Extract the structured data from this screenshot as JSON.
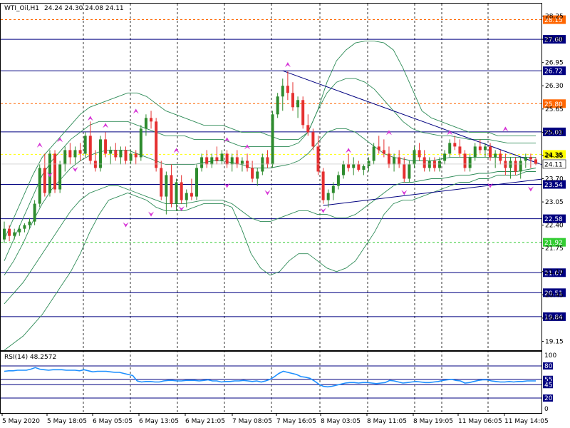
{
  "header": {
    "symbol": "WTI_Oil,H1",
    "ohlc": "24.24 24.30 24.08 24.11"
  },
  "rsi": {
    "label": "RSI(14) 48.2572",
    "scale_labels": [
      "100",
      "80",
      "55",
      "45",
      "20",
      "0"
    ],
    "levels": [
      80,
      55,
      45,
      20
    ],
    "color": "#1e90ff",
    "values": [
      70,
      71,
      71,
      72,
      72,
      72,
      74,
      77,
      74,
      73,
      72,
      73,
      73,
      73,
      72,
      72,
      72,
      71,
      73,
      71,
      69,
      70,
      70,
      70,
      69,
      68,
      68,
      66,
      64,
      62,
      52,
      50,
      51,
      51,
      50,
      50,
      52,
      53,
      53,
      52,
      52,
      53,
      53,
      53,
      52,
      53,
      54,
      52,
      52,
      50,
      51,
      51,
      52,
      52,
      53,
      52,
      51,
      52,
      50,
      52,
      55,
      60,
      66,
      70,
      68,
      66,
      64,
      60,
      59,
      57,
      52,
      46,
      42,
      41,
      42,
      44,
      46,
      48,
      49,
      49,
      48,
      49,
      49,
      48,
      47,
      48,
      49,
      53,
      52,
      50,
      48,
      49,
      50,
      51,
      50,
      49,
      49,
      50,
      51,
      53,
      54,
      55,
      53,
      52,
      48,
      49,
      51,
      53,
      54,
      54,
      52,
      51,
      50,
      50,
      51,
      50,
      51,
      51,
      52,
      52,
      52
    ]
  },
  "chart_data": {
    "type": "candlestick",
    "symbol": "WTI_Oil",
    "timeframe": "H1",
    "ylim": [
      18.9,
      28.6
    ],
    "price_ticks": [
      "28.25",
      "27.60",
      "26.95",
      "26.30",
      "25.65",
      "25.00",
      "24.35",
      "23.70",
      "23.05",
      "22.40",
      "21.75",
      "21.10",
      "20.45",
      "19.80",
      "19.15"
    ],
    "x_labels": [
      "5 May 2020",
      "5 May 18:05",
      "6 May 05:05",
      "6 May 13:05",
      "6 May 21:05",
      "7 May 08:05",
      "7 May 16:05",
      "8 May 03:05",
      "8 May 11:05",
      "8 May 19:05",
      "11 May 06:05",
      "11 May 14:05"
    ],
    "horizontal_levels": [
      {
        "value": 27.6,
        "label": "27.60",
        "style": "solid",
        "color": "#000080"
      },
      {
        "value": 26.72,
        "label": "26.72",
        "style": "solid",
        "color": "#000080"
      },
      {
        "value": 25.01,
        "label": "25.01",
        "style": "solid",
        "color": "#000080"
      },
      {
        "value": 23.54,
        "label": "23.54",
        "style": "solid",
        "color": "#000080"
      },
      {
        "value": 22.58,
        "label": "22.58",
        "style": "solid",
        "color": "#000080"
      },
      {
        "value": 21.07,
        "label": "21.07",
        "style": "solid",
        "color": "#000080"
      },
      {
        "value": 20.51,
        "label": "20.51",
        "style": "solid",
        "color": "#000080"
      },
      {
        "value": 19.84,
        "label": "19.84",
        "style": "solid",
        "color": "#000080"
      },
      {
        "value": 28.15,
        "label": "28.15",
        "style": "dashed",
        "color": "#ff6600"
      },
      {
        "value": 25.8,
        "label": "25.80",
        "style": "dashed",
        "color": "#ff6600"
      },
      {
        "value": 21.92,
        "label": "21.92",
        "style": "dashed",
        "color": "#33cc33"
      },
      {
        "value": 24.38,
        "label": "24.38",
        "style": "dashed",
        "color": "#ffff00"
      }
    ],
    "current_price": {
      "value": 24.11,
      "label": "24.11"
    },
    "candles": [
      [
        22.0,
        22.5,
        21.9,
        22.3
      ],
      [
        22.3,
        22.4,
        21.95,
        22.1
      ],
      [
        22.1,
        22.3,
        22.0,
        22.2
      ],
      [
        22.2,
        22.4,
        22.1,
        22.3
      ],
      [
        22.3,
        22.45,
        22.2,
        22.4
      ],
      [
        22.4,
        22.6,
        22.3,
        22.5
      ],
      [
        22.5,
        23.1,
        22.4,
        23.0
      ],
      [
        23.0,
        24.1,
        22.9,
        24.0
      ],
      [
        24.0,
        24.4,
        23.2,
        23.3
      ],
      [
        23.3,
        24.5,
        23.2,
        24.4
      ],
      [
        24.4,
        24.5,
        23.3,
        23.4
      ],
      [
        23.4,
        24.2,
        23.3,
        24.1
      ],
      [
        24.1,
        24.6,
        23.9,
        24.5
      ],
      [
        24.5,
        24.7,
        24.1,
        24.3
      ],
      [
        24.3,
        24.6,
        24.1,
        24.5
      ],
      [
        24.5,
        24.7,
        24.2,
        24.4
      ],
      [
        24.4,
        25.0,
        24.3,
        24.9
      ],
      [
        24.9,
        25.3,
        24.1,
        24.2
      ],
      [
        24.2,
        24.5,
        23.9,
        24.0
      ],
      [
        24.0,
        24.9,
        23.9,
        24.8
      ],
      [
        24.8,
        25.0,
        24.3,
        24.4
      ],
      [
        24.4,
        24.6,
        24.1,
        24.5
      ],
      [
        24.5,
        24.7,
        24.2,
        24.3
      ],
      [
        24.3,
        24.6,
        24.1,
        24.5
      ],
      [
        24.5,
        24.6,
        24.1,
        24.2
      ],
      [
        24.2,
        24.5,
        24.1,
        24.4
      ],
      [
        24.4,
        24.5,
        24.1,
        24.3
      ],
      [
        24.3,
        25.2,
        24.2,
        25.1
      ],
      [
        25.1,
        25.5,
        24.9,
        25.4
      ],
      [
        25.4,
        25.6,
        25.1,
        25.3
      ],
      [
        25.3,
        25.4,
        23.9,
        24.0
      ],
      [
        24.0,
        24.2,
        23.1,
        23.2
      ],
      [
        23.2,
        23.9,
        22.7,
        23.8
      ],
      [
        23.8,
        24.1,
        22.9,
        23.0
      ],
      [
        23.0,
        23.7,
        22.8,
        23.6
      ],
      [
        23.6,
        23.8,
        23.0,
        23.1
      ],
      [
        23.1,
        23.4,
        22.9,
        23.3
      ],
      [
        23.3,
        23.7,
        23.1,
        23.2
      ],
      [
        23.2,
        24.1,
        23.1,
        24.0
      ],
      [
        24.0,
        24.4,
        23.9,
        24.3
      ],
      [
        24.3,
        24.5,
        24.0,
        24.1
      ],
      [
        24.1,
        24.4,
        24.0,
        24.3
      ],
      [
        24.3,
        24.6,
        24.1,
        24.2
      ],
      [
        24.2,
        24.5,
        24.1,
        24.4
      ],
      [
        24.4,
        24.5,
        24.0,
        24.1
      ],
      [
        24.1,
        24.4,
        23.9,
        24.3
      ],
      [
        24.3,
        24.5,
        24.0,
        24.1
      ],
      [
        24.1,
        24.3,
        23.9,
        24.2
      ],
      [
        24.2,
        24.4,
        23.9,
        24.0
      ],
      [
        24.0,
        24.2,
        23.6,
        23.7
      ],
      [
        23.7,
        24.0,
        23.5,
        23.9
      ],
      [
        23.9,
        24.4,
        23.8,
        24.3
      ],
      [
        24.3,
        24.5,
        24.0,
        24.1
      ],
      [
        24.1,
        25.6,
        24.0,
        25.5
      ],
      [
        25.5,
        26.1,
        25.4,
        26.0
      ],
      [
        26.0,
        26.5,
        25.6,
        26.3
      ],
      [
        26.3,
        26.7,
        25.9,
        26.1
      ],
      [
        26.1,
        26.4,
        25.6,
        25.7
      ],
      [
        25.7,
        26.0,
        25.4,
        25.9
      ],
      [
        25.9,
        26.0,
        25.1,
        25.2
      ],
      [
        25.2,
        25.5,
        24.9,
        25.0
      ],
      [
        25.0,
        25.1,
        24.5,
        24.6
      ],
      [
        24.6,
        24.9,
        23.8,
        23.9
      ],
      [
        23.9,
        24.0,
        23.0,
        23.1
      ],
      [
        23.1,
        23.4,
        22.9,
        23.3
      ],
      [
        23.3,
        23.6,
        23.1,
        23.5
      ],
      [
        23.5,
        23.9,
        23.4,
        23.8
      ],
      [
        23.8,
        24.2,
        23.7,
        24.1
      ],
      [
        24.1,
        24.4,
        23.9,
        24.0
      ],
      [
        24.0,
        24.3,
        23.8,
        24.1
      ],
      [
        24.1,
        24.2,
        23.9,
        23.95
      ],
      [
        23.95,
        24.1,
        23.8,
        24.05
      ],
      [
        24.05,
        24.3,
        23.9,
        24.2
      ],
      [
        24.2,
        24.7,
        24.1,
        24.6
      ],
      [
        24.6,
        24.9,
        24.4,
        24.5
      ],
      [
        24.5,
        24.8,
        24.3,
        24.4
      ],
      [
        24.4,
        24.6,
        24.0,
        24.1
      ],
      [
        24.1,
        24.4,
        23.9,
        24.3
      ],
      [
        24.3,
        24.5,
        24.0,
        24.1
      ],
      [
        24.1,
        24.3,
        23.6,
        23.7
      ],
      [
        23.7,
        24.2,
        23.6,
        24.1
      ],
      [
        24.1,
        24.6,
        24.0,
        24.5
      ],
      [
        24.5,
        24.7,
        24.2,
        24.3
      ],
      [
        24.3,
        24.5,
        23.9,
        24.0
      ],
      [
        24.0,
        24.3,
        23.9,
        24.2
      ],
      [
        24.2,
        24.3,
        23.9,
        24.0
      ],
      [
        24.0,
        24.3,
        23.9,
        24.2
      ],
      [
        24.2,
        24.5,
        24.1,
        24.4
      ],
      [
        24.4,
        24.8,
        24.3,
        24.7
      ],
      [
        24.7,
        24.9,
        24.5,
        24.6
      ],
      [
        24.6,
        24.8,
        24.3,
        24.4
      ],
      [
        24.4,
        24.5,
        23.9,
        24.0
      ],
      [
        24.0,
        24.4,
        23.9,
        24.3
      ],
      [
        24.3,
        24.7,
        24.2,
        24.6
      ],
      [
        24.6,
        24.8,
        24.4,
        24.5
      ],
      [
        24.5,
        24.7,
        24.3,
        24.6
      ],
      [
        24.6,
        24.7,
        24.2,
        24.3
      ],
      [
        24.3,
        24.5,
        24.0,
        24.4
      ],
      [
        24.4,
        24.5,
        24.1,
        24.2
      ],
      [
        24.2,
        24.4,
        23.8,
        24.0
      ],
      [
        24.0,
        24.3,
        23.7,
        24.2
      ],
      [
        24.2,
        24.3,
        23.8,
        23.9
      ],
      [
        23.9,
        24.3,
        23.7,
        24.2
      ],
      [
        24.2,
        24.4,
        24.0,
        24.3
      ],
      [
        24.3,
        24.4,
        24.0,
        24.24
      ],
      [
        24.24,
        24.3,
        24.08,
        24.11
      ]
    ],
    "bollinger_outer": {
      "color": "#2e8b57",
      "upper": [
        22.0,
        22.6,
        23.2,
        23.8,
        24.3,
        24.6,
        24.9,
        25.2,
        25.5,
        25.7,
        25.8,
        25.9,
        26.0,
        26.1,
        26.1,
        26.0,
        25.8,
        25.6,
        25.5,
        25.4,
        25.3,
        25.2,
        25.2,
        25.2,
        25.1,
        25.0,
        25.0,
        25.0,
        24.9,
        24.8,
        24.8,
        24.8,
        25.0,
        25.6,
        26.4,
        27.0,
        27.3,
        27.5,
        27.55,
        27.55,
        27.5,
        27.3,
        26.8,
        26.2,
        25.6,
        25.4,
        25.3,
        25.2,
        25.1,
        25.0,
        25.0,
        25.0,
        24.9,
        24.9,
        24.9,
        24.9,
        24.9
      ],
      "lower": [
        18.9,
        19.1,
        19.3,
        19.6,
        19.9,
        20.3,
        20.7,
        21.1,
        21.6,
        22.2,
        22.7,
        23.1,
        23.2,
        23.3,
        23.2,
        23.1,
        22.9,
        22.8,
        22.8,
        22.8,
        22.9,
        23.0,
        23.0,
        23.0,
        22.9,
        22.3,
        21.6,
        21.2,
        21.0,
        21.1,
        21.4,
        21.6,
        21.6,
        21.4,
        21.2,
        21.1,
        21.2,
        21.4,
        21.8,
        22.2,
        22.7,
        23.0,
        23.1,
        23.1,
        23.2,
        23.3,
        23.4,
        23.5,
        23.6,
        23.6,
        23.7,
        23.7,
        23.8,
        23.8,
        23.8,
        23.9,
        23.9
      ]
    },
    "bollinger_inner": {
      "color": "#2e8b57",
      "upper": [
        21.4,
        22.0,
        22.6,
        23.2,
        23.8,
        24.2,
        24.5,
        24.8,
        25.0,
        25.2,
        25.3,
        25.3,
        25.3,
        25.3,
        25.2,
        25.1,
        25.0,
        24.9,
        24.9,
        24.9,
        24.8,
        24.8,
        24.8,
        24.8,
        24.7,
        24.6,
        24.6,
        24.6,
        24.6,
        24.6,
        24.6,
        24.7,
        25.0,
        25.6,
        26.1,
        26.4,
        26.5,
        26.5,
        26.4,
        26.2,
        25.9,
        25.6,
        25.3,
        25.1,
        25.0,
        24.95,
        24.9,
        24.9,
        24.85,
        24.8,
        24.8,
        24.8,
        24.75,
        24.7,
        24.7,
        24.7,
        24.7
      ],
      "lower": [
        20.2,
        20.5,
        20.8,
        21.2,
        21.6,
        22.0,
        22.4,
        22.8,
        23.1,
        23.3,
        23.4,
        23.5,
        23.5,
        23.4,
        23.3,
        23.2,
        23.1,
        23.0,
        23.0,
        23.0,
        23.05,
        23.1,
        23.1,
        23.1,
        23.0,
        22.8,
        22.6,
        22.5,
        22.5,
        22.6,
        22.7,
        22.8,
        22.8,
        22.7,
        22.7,
        22.6,
        22.6,
        22.7,
        22.9,
        23.1,
        23.3,
        23.5,
        23.6,
        23.6,
        23.65,
        23.7,
        23.7,
        23.75,
        23.8,
        23.8,
        23.85,
        23.85,
        23.9,
        23.9,
        23.9,
        23.95,
        24.0
      ]
    },
    "moving_average": {
      "color": "#2e8b57",
      "values": [
        21.0,
        21.4,
        21.9,
        22.5,
        23.0,
        23.4,
        23.7,
        24.0,
        24.2,
        24.35,
        24.45,
        24.5,
        24.5,
        24.5,
        24.4,
        24.3,
        24.2,
        24.1,
        24.1,
        24.1,
        24.1,
        24.15,
        24.2,
        24.2,
        24.15,
        24.1,
        24.0,
        24.0,
        24.0,
        24.05,
        24.1,
        24.2,
        24.4,
        24.7,
        25.0,
        25.1,
        25.1,
        25.0,
        24.8,
        24.6,
        24.4,
        24.3,
        24.25,
        24.2,
        24.2,
        24.2,
        24.25,
        24.3,
        24.3,
        24.3,
        24.3,
        24.3,
        24.3,
        24.3,
        24.3,
        24.3,
        24.3
      ]
    },
    "trendlines": [
      {
        "from": {
          "candle": 55,
          "value": 26.72
        },
        "to": {
          "candle": 108,
          "value": 24.0
        }
      },
      {
        "from": {
          "candle": 63,
          "value": 22.95
        },
        "to": {
          "candle": 108,
          "value": 23.72
        }
      }
    ],
    "fractals_up": [
      {
        "candle": 7,
        "value": 24.55
      },
      {
        "candle": 11,
        "value": 24.7
      },
      {
        "candle": 17,
        "value": 25.3
      },
      {
        "candle": 20,
        "value": 25.1
      },
      {
        "candle": 26,
        "value": 25.5
      },
      {
        "candle": 34,
        "value": 24.4
      },
      {
        "candle": 44,
        "value": 24.7
      },
      {
        "candle": 48,
        "value": 24.5
      },
      {
        "candle": 56,
        "value": 26.8
      },
      {
        "candle": 68,
        "value": 24.4
      },
      {
        "candle": 76,
        "value": 24.9
      },
      {
        "candle": 88,
        "value": 24.9
      },
      {
        "candle": 99,
        "value": 25.0
      }
    ],
    "fractals_down": [
      {
        "candle": 9,
        "value": 23.9
      },
      {
        "candle": 14,
        "value": 24.05
      },
      {
        "candle": 24,
        "value": 22.5
      },
      {
        "candle": 29,
        "value": 22.8
      },
      {
        "candle": 35,
        "value": 22.95
      },
      {
        "candle": 44,
        "value": 23.6
      },
      {
        "candle": 52,
        "value": 23.4
      },
      {
        "candle": 63,
        "value": 22.9
      },
      {
        "candle": 79,
        "value": 23.4
      },
      {
        "candle": 96,
        "value": 23.6
      },
      {
        "candle": 104,
        "value": 23.5
      }
    ],
    "colors": {
      "bull": "#2e8b2e",
      "bear": "#e53030",
      "fractal": "#d633d6",
      "trendline": "#000080"
    }
  }
}
